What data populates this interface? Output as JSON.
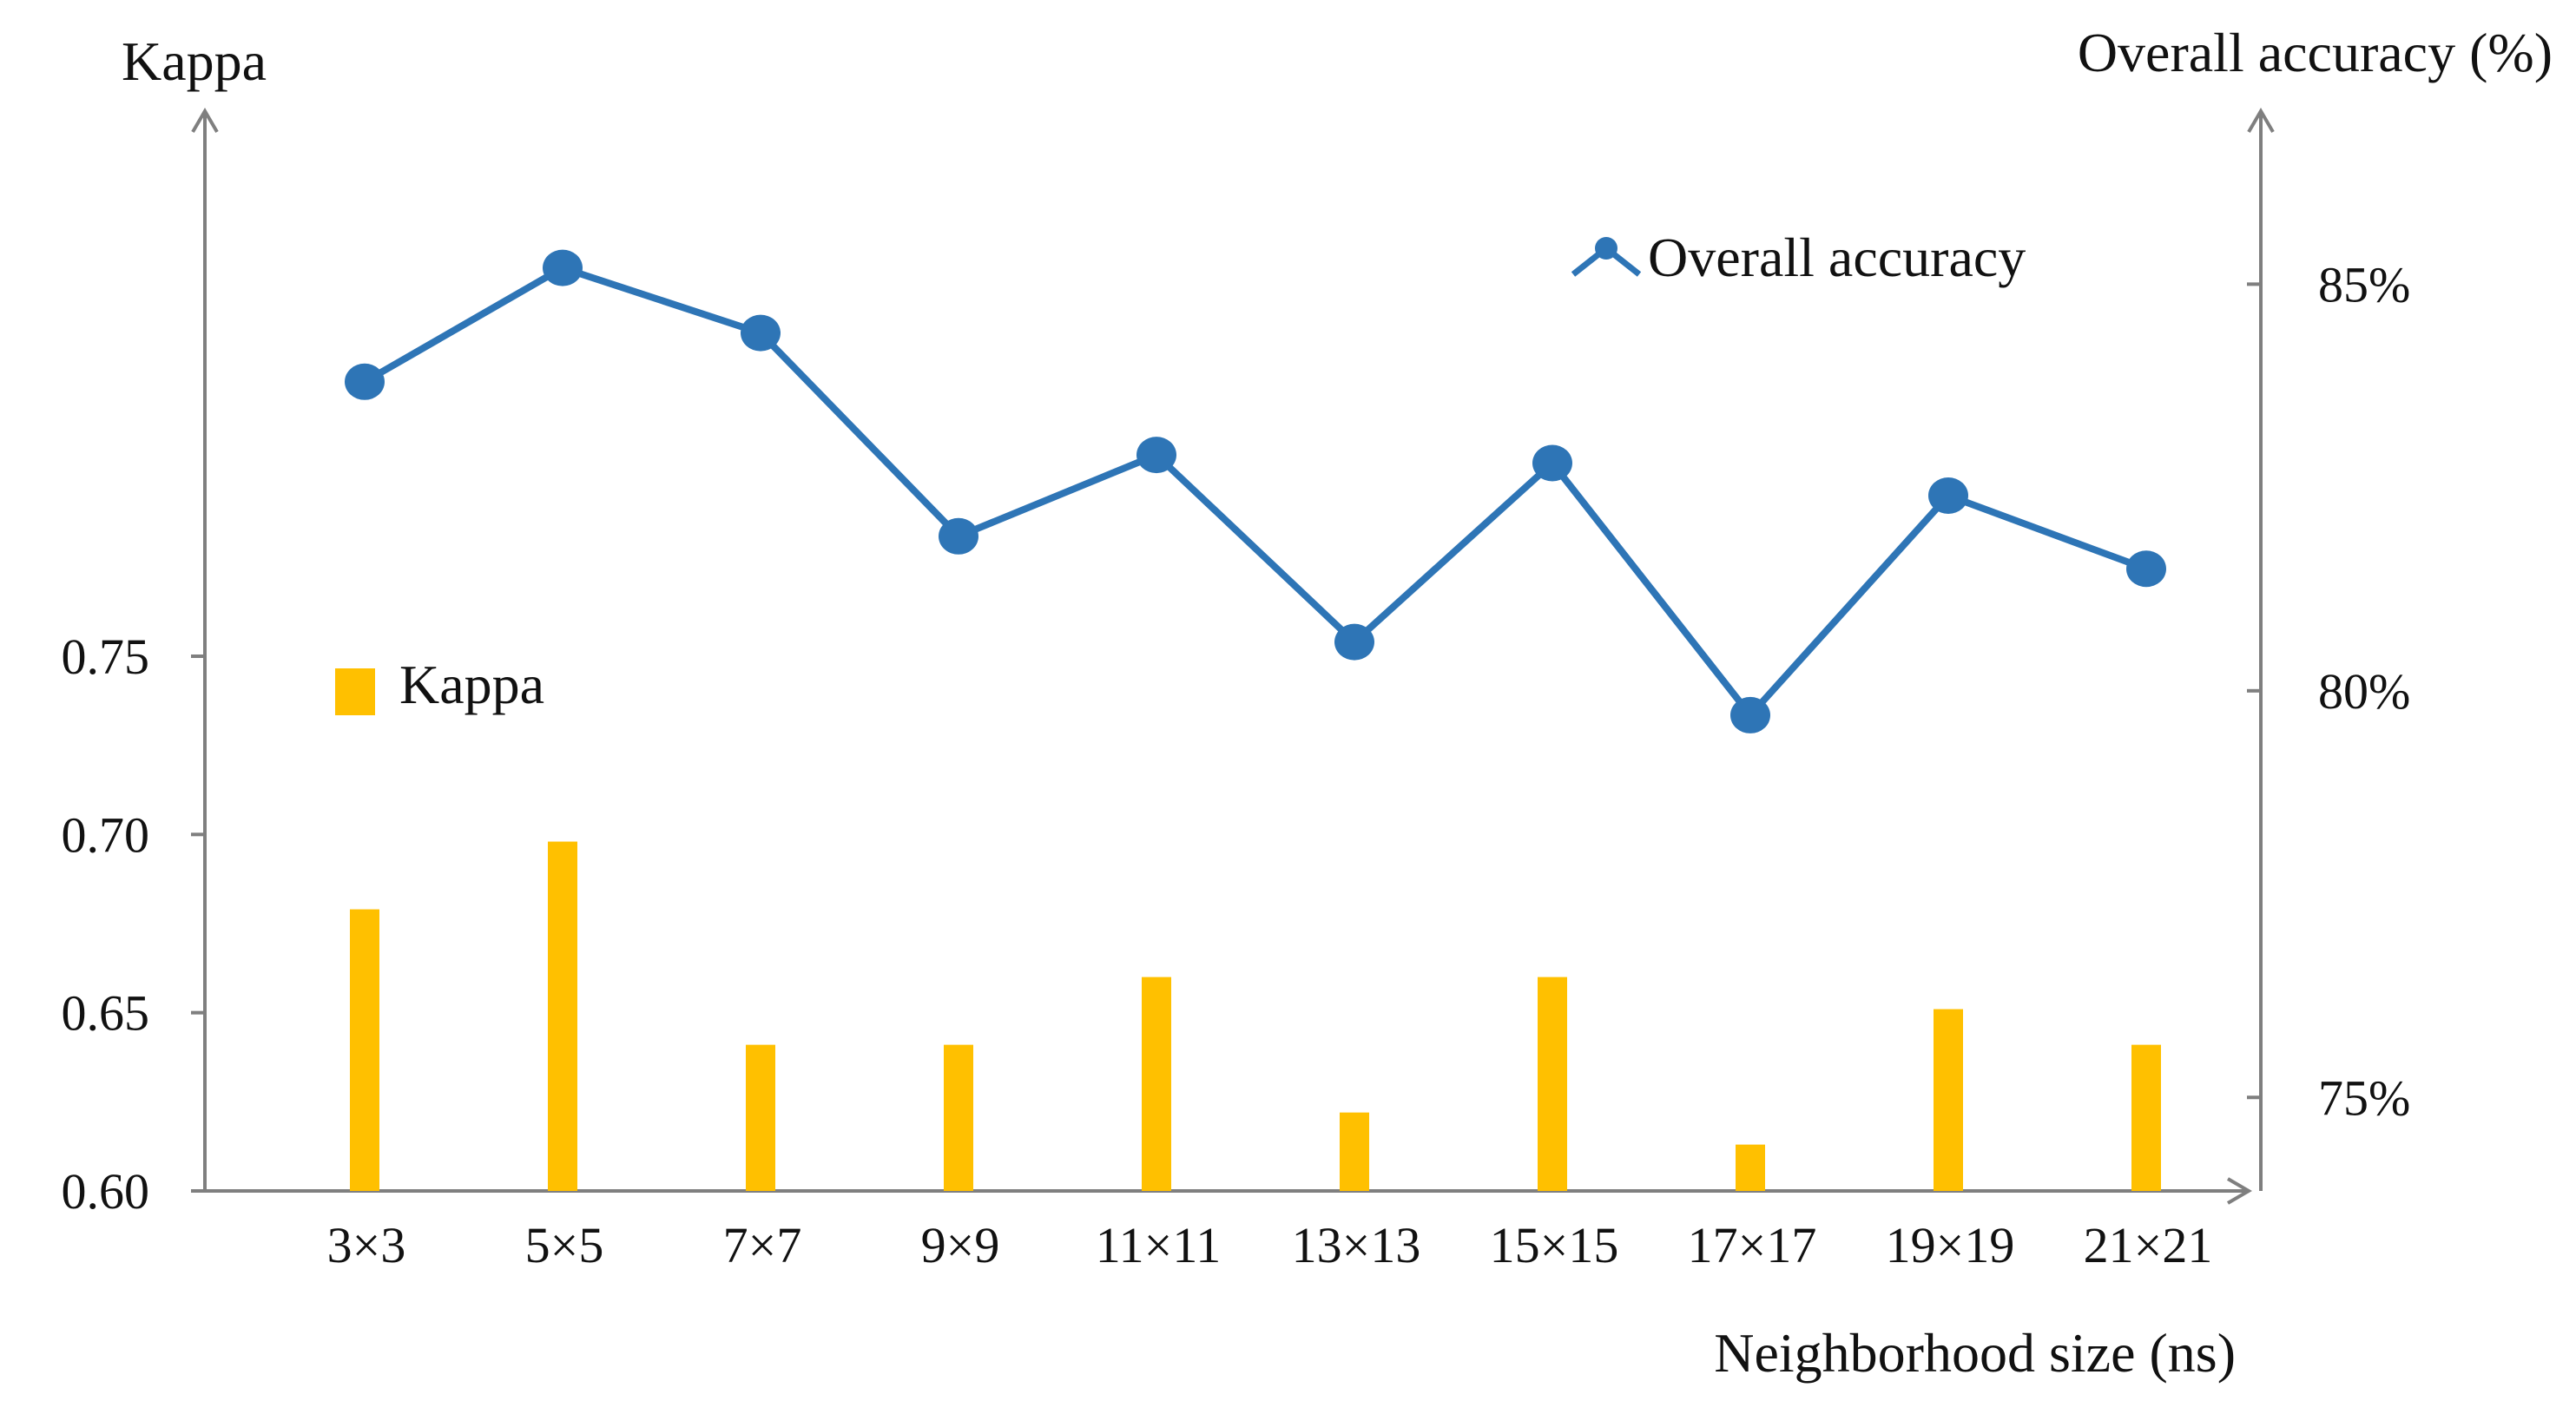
{
  "chart_data": {
    "type": "bar+line",
    "categories": [
      "3×3",
      "5×5",
      "7×7",
      "9×9",
      "11×11",
      "13×13",
      "15×15",
      "17×17",
      "19×19",
      "21×21"
    ],
    "xlabel": "Neighborhood size (ns)",
    "left_axis": {
      "title": "Kappa",
      "ylim": [
        0.6,
        0.9
      ],
      "ticks": [
        "0.60",
        "0.65",
        "0.70",
        "0.75"
      ]
    },
    "right_axis": {
      "title": "Overall accuracy (%)",
      "ylim": [
        73.85,
        87.0
      ],
      "ticks": [
        "75%",
        "80%",
        "85%"
      ]
    },
    "series": [
      {
        "name": "Kappa",
        "type": "bar",
        "axis": "left",
        "color": "#FFC000",
        "values": [
          0.679,
          0.698,
          0.641,
          0.641,
          0.66,
          0.622,
          0.66,
          0.613,
          0.651,
          0.641
        ]
      },
      {
        "name": "Overall accuracy",
        "type": "line",
        "axis": "right",
        "color": "#2E75B6",
        "values": [
          83.8,
          85.2,
          84.4,
          81.9,
          82.9,
          80.6,
          82.8,
          79.7,
          82.4,
          81.5
        ]
      }
    ],
    "legend": [
      {
        "label": "Overall accuracy",
        "marker": "line-dot",
        "position": "top-right"
      },
      {
        "label": "Kappa",
        "marker": "square",
        "position": "middle-left"
      }
    ],
    "grid": false
  }
}
